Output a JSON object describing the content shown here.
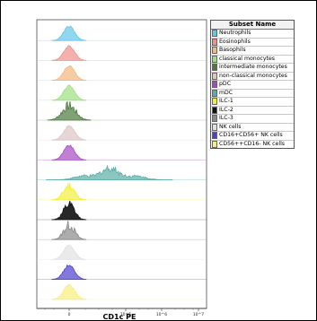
{
  "chart_data": {
    "type": "histogram",
    "xlabel": "CD1c PE",
    "x_scale": "biexponential",
    "x_ticks": [
      "0",
      "10^5",
      "10^6",
      "10^7"
    ],
    "ylabel": "",
    "grid": false,
    "legend_placement": "top-right",
    "legend_title": "Subset Name",
    "series": [
      {
        "name": "Neutrophils",
        "color": "#62c6e8",
        "distribution": {
          "peak": 0,
          "spread": "narrow"
        }
      },
      {
        "name": "Eosinophils",
        "color": "#ef8e8a",
        "distribution": {
          "peak": 0,
          "spread": "narrow"
        }
      },
      {
        "name": "Basophils",
        "color": "#f4b67c",
        "distribution": {
          "peak": 0,
          "spread": "narrow"
        }
      },
      {
        "name": "classical monocytes",
        "color": "#9be07f",
        "distribution": {
          "peak": 0,
          "spread": "narrow"
        }
      },
      {
        "name": "intermediate monocytes",
        "color": "#4c7a3c",
        "distribution": {
          "peak": 0,
          "spread": "moderate"
        }
      },
      {
        "name": "non-classical monocytes",
        "color": "#dcc4c4",
        "distribution": {
          "peak": 0,
          "spread": "narrow"
        }
      },
      {
        "name": "pDC",
        "color": "#a64ac2",
        "distribution": {
          "peak": 0,
          "spread": "narrow"
        }
      },
      {
        "name": "mDC",
        "color": "#5aaea7",
        "distribution": {
          "peak": "positive (~10^5)",
          "spread": "broad"
        }
      },
      {
        "name": "ILC-1",
        "color": "#f2ef3c",
        "distribution": {
          "peak": 0,
          "spread": "narrow"
        }
      },
      {
        "name": "ILC-2",
        "color": "#111111",
        "distribution": {
          "peak": 0,
          "spread": "narrow"
        }
      },
      {
        "name": "ILC-3",
        "color": "#8a8a8a",
        "distribution": {
          "peak": 0,
          "spread": "narrow"
        }
      },
      {
        "name": "NK cells",
        "color": "#e1e1e1",
        "distribution": {
          "peak": 0,
          "spread": "narrow"
        }
      },
      {
        "name": "CD16+CD56+ NK cells",
        "color": "#4d40cf",
        "distribution": {
          "peak": 0,
          "spread": "narrow"
        }
      },
      {
        "name": "CD56++CD16- NK cells",
        "color": "#f6ee7a",
        "distribution": {
          "peak": 0,
          "spread": "narrow"
        }
      }
    ]
  }
}
